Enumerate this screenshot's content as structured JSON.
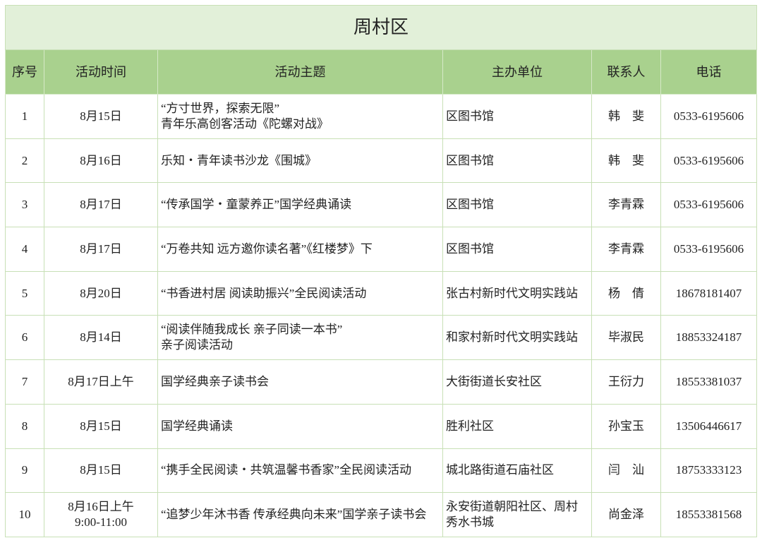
{
  "title": "周村区",
  "columns": [
    "序号",
    "活动时间",
    "活动主题",
    "主办单位",
    "联系人",
    "电话"
  ],
  "rows": [
    {
      "no": "1",
      "time": "8月15日",
      "topic": "“方寸世界，探索无限”\n青年乐高创客活动《陀螺对战》",
      "org": "区图书馆",
      "contact": "韩　斐",
      "phone": "0533-6195606"
    },
    {
      "no": "2",
      "time": "8月16日",
      "topic": "乐知・青年读书沙龙《围城》",
      "org": "区图书馆",
      "contact": "韩　斐",
      "phone": "0533-6195606"
    },
    {
      "no": "3",
      "time": "8月17日",
      "topic": "“传承国学・童蒙养正”国学经典诵读",
      "org": "区图书馆",
      "contact": "李青霖",
      "phone": "0533-6195606"
    },
    {
      "no": "4",
      "time": "8月17日",
      "topic": "“万卷共知 远方邀你读名著”《红楼梦》下",
      "org": "区图书馆",
      "contact": "李青霖",
      "phone": "0533-6195606"
    },
    {
      "no": "5",
      "time": "8月20日",
      "topic": "“书香进村居 阅读助振兴”全民阅读活动",
      "org": "张古村新时代文明实践站",
      "contact": "杨　倩",
      "phone": "18678181407"
    },
    {
      "no": "6",
      "time": "8月14日",
      "topic": "“阅读伴随我成长 亲子同读一本书”\n亲子阅读活动",
      "org": "和家村新时代文明实践站",
      "contact": "毕淑民",
      "phone": "18853324187"
    },
    {
      "no": "7",
      "time": "8月17日上午",
      "topic": "国学经典亲子读书会",
      "org": "大街街道长安社区",
      "contact": "王衍力",
      "phone": "18553381037"
    },
    {
      "no": "8",
      "time": "8月15日",
      "topic": "国学经典诵读",
      "org": "胜利社区",
      "contact": "孙宝玉",
      "phone": "13506446617"
    },
    {
      "no": "9",
      "time": "8月15日",
      "topic": "“携手全民阅读・共筑温馨书香家”全民阅读活动",
      "org": "城北路街道石庙社区",
      "contact": "闫　汕",
      "phone": "18753333123"
    },
    {
      "no": "10",
      "time": "8月16日上午\n9:00-11:00",
      "topic": "“追梦少年沐书香 传承经典向未来”国学亲子读书会",
      "org": "永安街道朝阳社区、周村秀水书城",
      "contact": "尚金泽",
      "phone": "18553381568"
    }
  ],
  "colors": {
    "title_bg": "#e2f0d9",
    "header_bg": "#a9d18e",
    "border": "#c8e0b6"
  }
}
